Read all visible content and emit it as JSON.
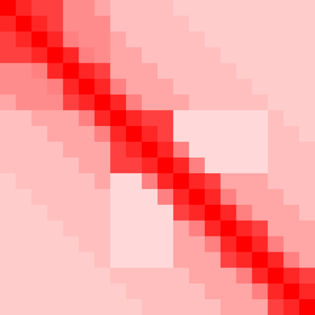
{
  "chart_data": {
    "type": "heatmap",
    "colors": [
      "#ffffff",
      "#ff0000"
    ],
    "zlim": [
      0,
      100
    ],
    "values": [
      [
        100,
        85,
        75,
        75,
        45,
        45,
        35,
        25,
        25,
        25,
        25,
        20,
        20,
        20,
        20,
        20,
        20,
        20,
        20,
        20
      ],
      [
        85,
        100,
        85,
        75,
        45,
        45,
        45,
        25,
        25,
        25,
        25,
        25,
        20,
        20,
        20,
        20,
        20,
        20,
        20,
        20
      ],
      [
        75,
        85,
        100,
        85,
        50,
        45,
        45,
        35,
        25,
        25,
        25,
        25,
        25,
        20,
        20,
        20,
        20,
        20,
        20,
        20
      ],
      [
        75,
        75,
        85,
        100,
        85,
        50,
        45,
        35,
        35,
        25,
        25,
        25,
        25,
        25,
        20,
        20,
        20,
        20,
        20,
        20
      ],
      [
        45,
        45,
        50,
        85,
        100,
        85,
        75,
        35,
        35,
        35,
        25,
        25,
        25,
        25,
        25,
        20,
        20,
        20,
        20,
        20
      ],
      [
        45,
        45,
        45,
        50,
        85,
        100,
        85,
        50,
        35,
        35,
        35,
        25,
        25,
        25,
        25,
        25,
        20,
        20,
        20,
        20
      ],
      [
        35,
        45,
        45,
        45,
        75,
        85,
        100,
        85,
        50,
        35,
        35,
        35,
        25,
        25,
        25,
        25,
        25,
        20,
        20,
        20
      ],
      [
        25,
        25,
        35,
        35,
        35,
        50,
        85,
        100,
        85,
        75,
        75,
        15,
        15,
        15,
        15,
        15,
        15,
        25,
        20,
        20
      ],
      [
        25,
        25,
        25,
        35,
        35,
        35,
        50,
        85,
        100,
        85,
        75,
        15,
        15,
        15,
        15,
        15,
        15,
        25,
        25,
        20
      ],
      [
        25,
        25,
        25,
        25,
        35,
        35,
        35,
        75,
        85,
        100,
        85,
        50,
        15,
        15,
        15,
        15,
        15,
        25,
        25,
        25
      ],
      [
        25,
        25,
        25,
        25,
        25,
        35,
        35,
        75,
        75,
        85,
        100,
        85,
        50,
        15,
        15,
        15,
        15,
        25,
        25,
        25
      ],
      [
        20,
        25,
        25,
        25,
        25,
        25,
        35,
        15,
        15,
        50,
        85,
        100,
        85,
        75,
        35,
        35,
        35,
        25,
        25,
        25
      ],
      [
        20,
        20,
        25,
        25,
        25,
        25,
        25,
        15,
        15,
        15,
        50,
        85,
        100,
        85,
        50,
        35,
        35,
        35,
        25,
        25
      ],
      [
        20,
        20,
        20,
        25,
        25,
        25,
        25,
        15,
        15,
        15,
        15,
        75,
        85,
        100,
        85,
        50,
        35,
        35,
        35,
        25
      ],
      [
        20,
        20,
        20,
        20,
        25,
        25,
        25,
        15,
        15,
        15,
        15,
        35,
        50,
        85,
        100,
        85,
        75,
        35,
        35,
        35
      ],
      [
        20,
        20,
        20,
        20,
        20,
        25,
        25,
        15,
        15,
        15,
        15,
        35,
        35,
        50,
        85,
        100,
        85,
        50,
        35,
        35
      ],
      [
        20,
        20,
        20,
        20,
        20,
        20,
        25,
        15,
        15,
        15,
        15,
        35,
        35,
        35,
        75,
        85,
        100,
        85,
        50,
        35
      ],
      [
        20,
        20,
        20,
        20,
        20,
        20,
        20,
        25,
        25,
        25,
        25,
        25,
        35,
        35,
        35,
        50,
        85,
        100,
        85,
        75
      ],
      [
        20,
        20,
        20,
        20,
        20,
        20,
        20,
        20,
        25,
        25,
        25,
        25,
        25,
        35,
        35,
        35,
        50,
        85,
        100,
        85
      ],
      [
        20,
        20,
        20,
        20,
        20,
        20,
        20,
        20,
        20,
        25,
        25,
        25,
        25,
        25,
        35,
        35,
        35,
        75,
        85,
        100
      ]
    ]
  }
}
